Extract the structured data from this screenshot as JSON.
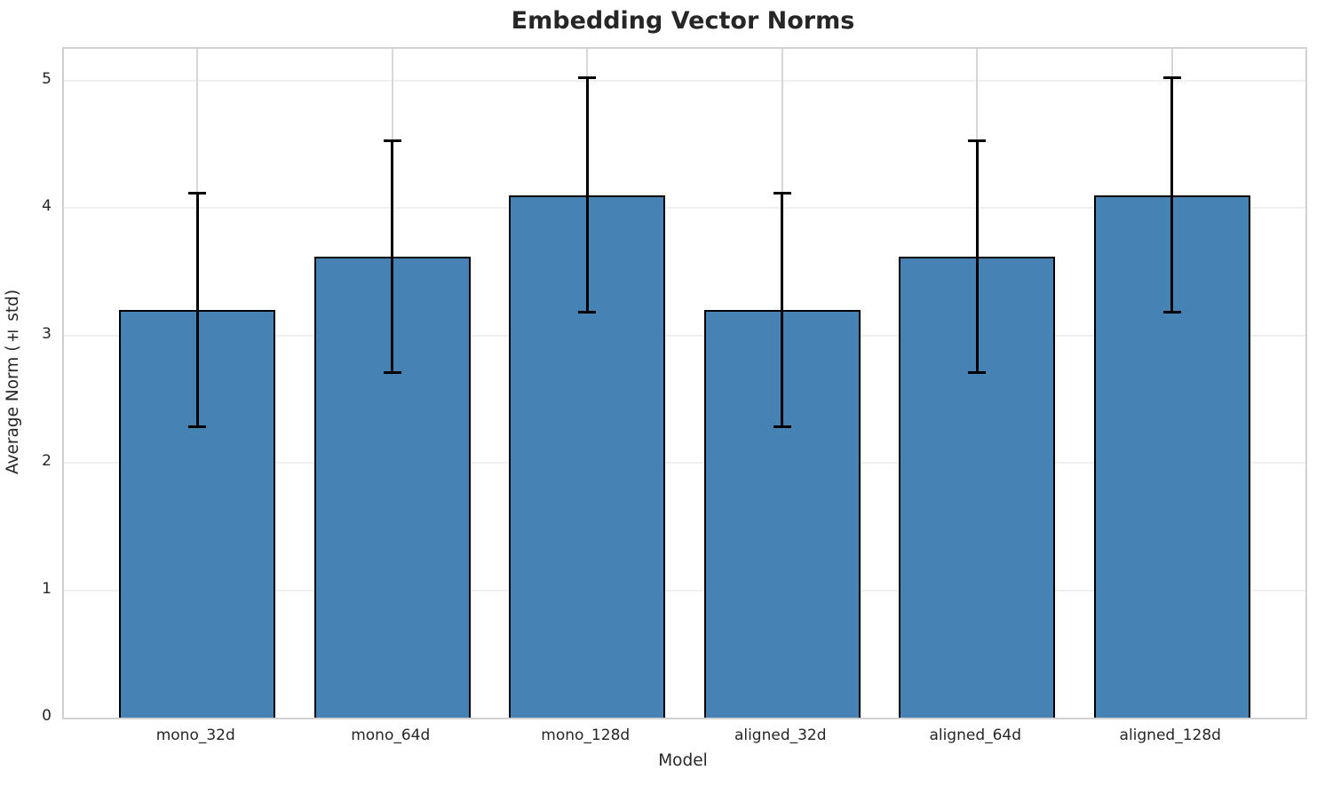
{
  "chart_data": {
    "type": "bar",
    "title": "Embedding Vector Norms",
    "xlabel": "Model",
    "ylabel": "Average Norm (± std)",
    "categories": [
      "mono_32d",
      "mono_64d",
      "mono_128d",
      "aligned_32d",
      "aligned_64d",
      "aligned_128d"
    ],
    "values": [
      3.2,
      3.62,
      4.1,
      3.2,
      3.62,
      4.1
    ],
    "errors": [
      0.92,
      0.91,
      0.92,
      0.92,
      0.91,
      0.92
    ],
    "yticks": [
      0,
      1,
      2,
      3,
      4,
      5
    ],
    "ylim": [
      0,
      5.25
    ],
    "grid": true,
    "legend": "none",
    "bar_color": "#4682b4",
    "bar_edge_color": "#000000",
    "error_color": "#000000",
    "h_grid_color": "#f0f0f0",
    "v_grid_color": "#d7d7d7",
    "spine_color": "#d2d2d2",
    "text_color": "#262626"
  }
}
